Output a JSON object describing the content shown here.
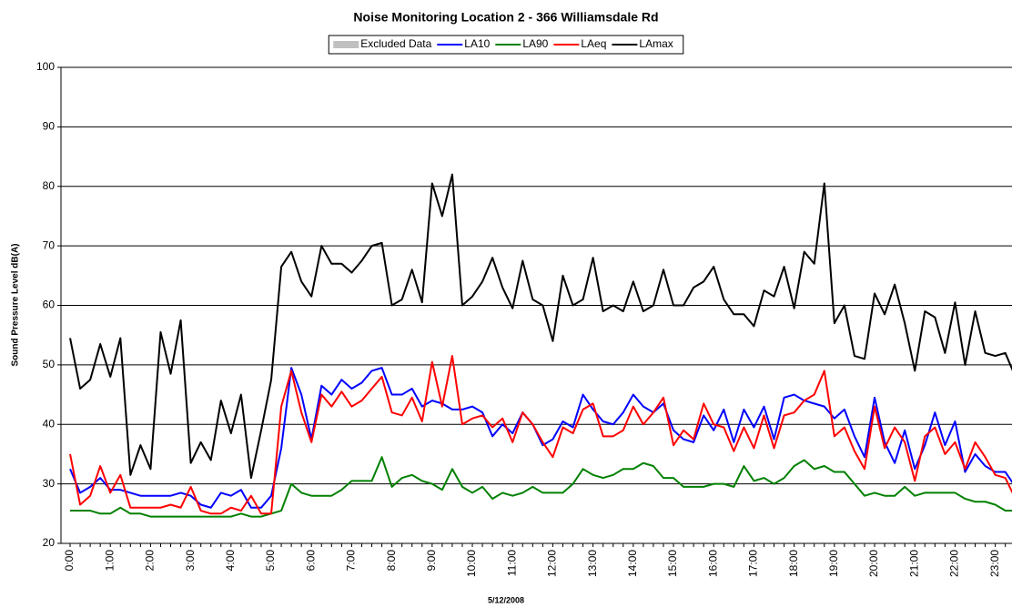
{
  "chart_data": {
    "type": "line",
    "title": "Noise Monitoring Location 2 - 366 Williamsdale Rd",
    "y_label": "Sound Pressure Level dB(A)",
    "x_label": "5/12/2008",
    "categories": [
      "0:00",
      null,
      null,
      null,
      "1:00",
      null,
      null,
      null,
      "2:00",
      null,
      null,
      null,
      "3:00",
      null,
      null,
      null,
      "4:00",
      null,
      null,
      null,
      "5:00",
      null,
      null,
      null,
      "6:00",
      null,
      null,
      null,
      "7:00",
      null,
      null,
      null,
      "8:00",
      null,
      null,
      null,
      "9:00",
      null,
      null,
      null,
      "10:00",
      null,
      null,
      null,
      "11:00",
      null,
      null,
      null,
      "12:00",
      null,
      null,
      null,
      "13:00",
      null,
      null,
      null,
      "14:00",
      null,
      null,
      null,
      "15:00",
      null,
      null,
      null,
      "16:00",
      null,
      null,
      null,
      "17:00",
      null,
      null,
      null,
      "18:00",
      null,
      null,
      null,
      "19:00",
      null,
      null,
      null,
      "20:00",
      null,
      null,
      null,
      "21:00",
      null,
      null,
      null,
      "22:00",
      null,
      null,
      null,
      "23:00",
      null,
      null,
      null
    ],
    "series": [
      {
        "name": "Excluded Data",
        "color": "#c0c0c0",
        "values": [
          null,
          null,
          null,
          null,
          null,
          null,
          null,
          null,
          null,
          null,
          null,
          null,
          null,
          null,
          null,
          null,
          null,
          null,
          null,
          null,
          null,
          null,
          null,
          null,
          null,
          null,
          null,
          null,
          null,
          null,
          null,
          null,
          null,
          null,
          null,
          null,
          null,
          null,
          null,
          null,
          null,
          null,
          null,
          null,
          null,
          null,
          null,
          null,
          null,
          null,
          null,
          null,
          null,
          null,
          null,
          null,
          null,
          null,
          null,
          null,
          null,
          null,
          null,
          null,
          null,
          null,
          null,
          null,
          null,
          null,
          null,
          null,
          null,
          null,
          null,
          null,
          null,
          null,
          null,
          null,
          null,
          null,
          null,
          null,
          null,
          null,
          null,
          null,
          null,
          null,
          null,
          null,
          null,
          null,
          null,
          null
        ]
      },
      {
        "name": "LA10",
        "color": "#0000ff",
        "values": [
          32.5,
          28.5,
          29.5,
          31,
          29,
          29,
          28.5,
          28,
          28,
          28,
          28,
          28.5,
          28,
          26.5,
          26,
          28.5,
          28,
          29,
          26,
          26,
          28,
          36,
          49.5,
          45,
          37.5,
          46.5,
          45,
          47.5,
          46,
          47,
          49,
          49.5,
          45,
          45,
          46,
          43,
          44,
          43.5,
          42.5,
          42.5,
          43,
          42,
          38,
          40,
          38.5,
          42,
          40,
          36.5,
          37.5,
          40.5,
          39.5,
          45,
          42.5,
          40.5,
          40,
          42,
          45,
          43,
          42,
          43.5,
          39,
          37.5,
          37,
          41.5,
          39,
          42.5,
          37,
          42.5,
          39.5,
          43,
          37.5,
          44.5,
          45,
          44,
          43.5,
          43,
          41,
          42.5,
          38,
          34.5,
          44.5,
          37,
          33.5,
          39,
          32.5,
          36.5,
          42,
          36.5,
          40.5,
          32,
          35,
          33,
          32,
          32,
          29.5,
          28.5
        ]
      },
      {
        "name": "LA90",
        "color": "#008000",
        "values": [
          25.5,
          25.5,
          25.5,
          25,
          25,
          26,
          25,
          25,
          24.5,
          24.5,
          24.5,
          24.5,
          24.5,
          24.5,
          24.5,
          24.5,
          24.5,
          25,
          24.5,
          24.5,
          25,
          25.5,
          30,
          28.5,
          28,
          28,
          28,
          29,
          30.5,
          30.5,
          30.5,
          34.5,
          29.5,
          31,
          31.5,
          30.5,
          30,
          29,
          32.5,
          29.5,
          28.5,
          29.5,
          27.5,
          28.5,
          28,
          28.5,
          29.5,
          28.5,
          28.5,
          28.5,
          30,
          32.5,
          31.5,
          31,
          31.5,
          32.5,
          32.5,
          33.5,
          33,
          31,
          31,
          29.5,
          29.5,
          29.5,
          30,
          30,
          29.5,
          33,
          30.5,
          31,
          30,
          31,
          33,
          34,
          32.5,
          33,
          32,
          32,
          30,
          28,
          28.5,
          28,
          28,
          29.5,
          28,
          28.5,
          28.5,
          28.5,
          28.5,
          27.5,
          27,
          27,
          26.5,
          25.5,
          25.5,
          25.5
        ]
      },
      {
        "name": "LAeq",
        "color": "#ff0000",
        "values": [
          35,
          26.5,
          28,
          33,
          28.5,
          31.5,
          26,
          26,
          26,
          26,
          26.5,
          26,
          29.5,
          25.5,
          25,
          25,
          26,
          25.5,
          28,
          25,
          25,
          43,
          49,
          42,
          37,
          45,
          43,
          45.5,
          43,
          44,
          46,
          48,
          42,
          41.5,
          44.5,
          40.5,
          50.5,
          43,
          51.5,
          40,
          41,
          41.5,
          39.5,
          41,
          37,
          42,
          40,
          37,
          34.5,
          39.5,
          38.5,
          42.5,
          43.5,
          38,
          38,
          39,
          43,
          40,
          42,
          44.5,
          36.5,
          39,
          37.5,
          43.5,
          40,
          39.5,
          35.5,
          39.5,
          36,
          41.5,
          36,
          41.5,
          42,
          44,
          45,
          49,
          38,
          39.5,
          35.5,
          32.5,
          43,
          36,
          39.5,
          37,
          30.5,
          38,
          39.5,
          35,
          37,
          32.5,
          37,
          34.5,
          31.5,
          31,
          27.5,
          29
        ]
      },
      {
        "name": "LAmax",
        "color": "#000000",
        "values": [
          54.5,
          46,
          47.5,
          53.5,
          48,
          54.5,
          31.5,
          36.5,
          32.5,
          55.5,
          48.5,
          57.5,
          33.5,
          37,
          34,
          44,
          38.5,
          45,
          31,
          39,
          47.5,
          66.5,
          69,
          64,
          61.5,
          70,
          67,
          67,
          65.5,
          67.5,
          70,
          70.5,
          60,
          61,
          66,
          60.5,
          80.5,
          75,
          82,
          60,
          61.5,
          64,
          68,
          63,
          59.5,
          67.5,
          61,
          60,
          54,
          65,
          60,
          61,
          68,
          59,
          60,
          59,
          64,
          59,
          60,
          66,
          60,
          60,
          63,
          64,
          66.5,
          61,
          58.5,
          58.5,
          56.5,
          62.5,
          61.5,
          66.5,
          59.5,
          69,
          67,
          80.5,
          57,
          60,
          51.5,
          51,
          62,
          58.5,
          63.5,
          57,
          49,
          59,
          58,
          52,
          60.5,
          50,
          59,
          52,
          51.5,
          52,
          48,
          48
        ]
      }
    ],
    "ylim": [
      20,
      100
    ],
    "yticks": [
      20,
      30,
      40,
      50,
      60,
      70,
      80,
      90,
      100
    ],
    "grid": true
  }
}
